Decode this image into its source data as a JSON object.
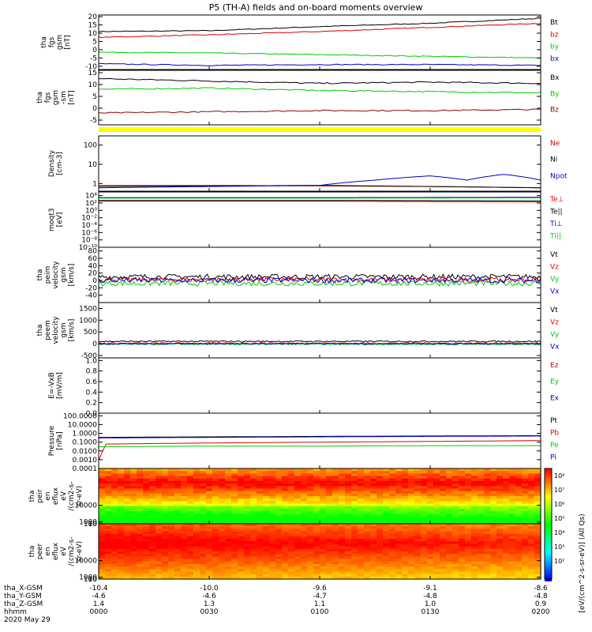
{
  "title": "P5 (TH-A) fields and on-board moments overview",
  "colors": {
    "black": "#000000",
    "red": "#e00000",
    "green": "#00cc00",
    "blue": "#0000cc",
    "darkred": "#990000",
    "yellow": "#ffff00"
  },
  "chart_data": [
    {
      "type": "line",
      "name": "tha_fgs_gsm",
      "ylabel_lines": [
        "tha",
        "fgs",
        "gsm",
        "[nT]"
      ],
      "ylim": [
        -12,
        21
      ],
      "yticks": [
        {
          "v": 20,
          "l": "20"
        },
        {
          "v": 15,
          "l": "15"
        },
        {
          "v": 10,
          "l": "10"
        },
        {
          "v": 5,
          "l": "5"
        },
        {
          "v": 0,
          "l": "0"
        },
        {
          "v": -5,
          "l": "-5"
        },
        {
          "v": -10,
          "l": "-10"
        }
      ],
      "series": [
        {
          "name": "Bt",
          "color": "#000000",
          "x": [
            0,
            30,
            60,
            90,
            120
          ],
          "values": [
            11,
            11.5,
            14,
            16,
            19
          ]
        },
        {
          "name": "bz",
          "color": "#e00000",
          "x": [
            0,
            30,
            60,
            90,
            120
          ],
          "values": [
            7.5,
            9,
            11,
            13.5,
            16
          ]
        },
        {
          "name": "by",
          "color": "#00cc00",
          "x": [
            0,
            30,
            60,
            90,
            120
          ],
          "values": [
            -1.5,
            -2,
            -3,
            -4,
            -5
          ]
        },
        {
          "name": "bx",
          "color": "#0000cc",
          "x": [
            0,
            30,
            60,
            90,
            120
          ],
          "values": [
            -8.5,
            -9.5,
            -9,
            -9,
            -9.5
          ]
        }
      ]
    },
    {
      "type": "line",
      "name": "tha_fgs_gsm_sm",
      "ylabel_lines": [
        "tha",
        "fgs",
        "gsm",
        "-sm",
        "[nT]"
      ],
      "ylim": [
        -7,
        16
      ],
      "yticks": [
        {
          "v": 15,
          "l": "15"
        },
        {
          "v": 10,
          "l": "10"
        },
        {
          "v": 5,
          "l": "5"
        },
        {
          "v": 0,
          "l": "0"
        },
        {
          "v": -5,
          "l": "-5"
        }
      ],
      "series": [
        {
          "name": "Bx",
          "color": "#000000",
          "x": [
            0,
            30,
            60,
            90,
            120
          ],
          "values": [
            12.5,
            11.5,
            10.5,
            11,
            10.5
          ]
        },
        {
          "name": "By",
          "color": "#00cc00",
          "x": [
            0,
            30,
            60,
            90,
            120
          ],
          "values": [
            8,
            8.5,
            7.5,
            7,
            6.5
          ]
        },
        {
          "name": "Bz",
          "color": "#990000",
          "x": [
            0,
            30,
            60,
            90,
            120
          ],
          "values": [
            -2,
            -1.5,
            -1,
            -1,
            -0.5
          ]
        }
      ]
    },
    {
      "type": "line",
      "name": "density",
      "ylog": true,
      "ylabel_lines": [
        "Density",
        "[cm-3]"
      ],
      "ylim": [
        0.4,
        300
      ],
      "yticks": [
        {
          "v": 1,
          "l": "1"
        },
        {
          "v": 10,
          "l": "10"
        },
        {
          "v": 100,
          "l": "100"
        }
      ],
      "series": [
        {
          "name": "Ne",
          "color": "#e00000",
          "x": [
            0,
            30,
            60,
            90,
            120
          ],
          "values": [
            0.8,
            0.8,
            0.75,
            0.7,
            0.6
          ]
        },
        {
          "name": "Ni",
          "color": "#000000",
          "x": [
            0,
            30,
            60,
            90,
            120
          ],
          "values": [
            0.7,
            0.75,
            0.8,
            0.7,
            0.6
          ]
        },
        {
          "name": "Npot",
          "color": "#0000cc",
          "x": [
            0,
            30,
            60,
            75,
            90,
            100,
            110,
            120
          ],
          "values": [
            0.6,
            0.7,
            0.8,
            1.5,
            2.5,
            1.5,
            3,
            1.5
          ]
        }
      ]
    },
    {
      "type": "line",
      "name": "moqt3",
      "ylog": true,
      "ylabel_lines": [
        "moqt3",
        "[eV]"
      ],
      "ylim": [
        1e-10,
        100000.0
      ],
      "yticks": [
        {
          "v": 10000,
          "l": "10⁴"
        },
        {
          "v": 100,
          "l": "10²"
        },
        {
          "v": 1,
          "l": "10⁰"
        },
        {
          "v": 0.01,
          "l": "10⁻²"
        },
        {
          "v": 0.0001,
          "l": "10⁻⁴"
        },
        {
          "v": 1e-06,
          "l": "10⁻⁶"
        },
        {
          "v": 1e-08,
          "l": "10⁻⁸"
        },
        {
          "v": 1e-10,
          "l": "10⁻¹⁰"
        }
      ],
      "series": [
        {
          "name": "Te⊥",
          "color": "#e00000",
          "x": [
            0,
            60,
            120
          ],
          "values": [
            300,
            300,
            200
          ]
        },
        {
          "name": "Te||",
          "color": "#000000",
          "x": [
            0,
            60,
            120
          ],
          "values": [
            500,
            500,
            400
          ]
        },
        {
          "name": "Ti⊥",
          "color": "#0000cc",
          "x": [
            0,
            60,
            120
          ],
          "values": [
            3000,
            3000,
            3500
          ]
        },
        {
          "name": "Ti||",
          "color": "#00cc00",
          "x": [
            0,
            60,
            120
          ],
          "values": [
            2000,
            2000,
            2500
          ]
        }
      ]
    },
    {
      "type": "line",
      "name": "peim_velocity",
      "ylabel_lines": [
        "tha",
        "peim",
        "velocity",
        "gsm",
        "[km/s]"
      ],
      "ylim": [
        -60,
        90
      ],
      "yticks": [
        {
          "v": 80,
          "l": "80"
        },
        {
          "v": 60,
          "l": "60"
        },
        {
          "v": 40,
          "l": "40"
        },
        {
          "v": 20,
          "l": "20"
        },
        {
          "v": 0,
          "l": "0"
        },
        {
          "v": -20,
          "l": "-20"
        },
        {
          "v": -40,
          "l": "-40"
        }
      ],
      "series": [
        {
          "name": "Vt",
          "color": "#000000",
          "x": [
            0,
            120
          ],
          "values": [
            10,
            10
          ]
        },
        {
          "name": "Vz",
          "color": "#e00000",
          "x": [
            0,
            120
          ],
          "values": [
            2,
            2
          ]
        },
        {
          "name": "Vy",
          "color": "#00cc00",
          "x": [
            0,
            120
          ],
          "values": [
            -8,
            -8
          ]
        },
        {
          "name": "Vx",
          "color": "#0000cc",
          "x": [
            0,
            120
          ],
          "values": [
            0,
            0
          ]
        }
      ]
    },
    {
      "type": "line",
      "name": "peem_velocity",
      "ylabel_lines": [
        "tha",
        "peem",
        "velocity",
        "gsm",
        "[km/s]"
      ],
      "ylim": [
        -600,
        1750
      ],
      "yticks": [
        {
          "v": 1500,
          "l": "1500"
        },
        {
          "v": 1000,
          "l": "1000"
        },
        {
          "v": 500,
          "l": "500"
        },
        {
          "v": 0,
          "l": "0"
        },
        {
          "v": -500,
          "l": "-500"
        }
      ],
      "series": [
        {
          "name": "Vt",
          "color": "#000000",
          "x": [
            0,
            120
          ],
          "values": [
            100,
            100
          ]
        },
        {
          "name": "Vz",
          "color": "#e00000",
          "x": [
            0,
            120
          ],
          "values": [
            20,
            20
          ]
        },
        {
          "name": "Vy",
          "color": "#00cc00",
          "x": [
            0,
            120
          ],
          "values": [
            -20,
            -20
          ]
        },
        {
          "name": "Vx",
          "color": "#0000cc",
          "x": [
            0,
            120
          ],
          "values": [
            0,
            0
          ]
        }
      ]
    },
    {
      "type": "line",
      "name": "efield",
      "ylabel_lines": [
        "E=-VxB",
        "[mV/m]"
      ],
      "ylim": [
        0,
        1.05
      ],
      "yticks": [
        {
          "v": 1.0,
          "l": "1.0"
        },
        {
          "v": 0.8,
          "l": "0.8"
        },
        {
          "v": 0.6,
          "l": "0.6"
        },
        {
          "v": 0.4,
          "l": "0.4"
        },
        {
          "v": 0.2,
          "l": "0.2"
        },
        {
          "v": 0.0,
          "l": "0.0"
        }
      ],
      "series": [
        {
          "name": "Ez",
          "color": "#e00000",
          "x": [],
          "values": []
        },
        {
          "name": "Ey",
          "color": "#00cc00",
          "x": [],
          "values": []
        },
        {
          "name": "Ex",
          "color": "#0000cc",
          "x": [],
          "values": []
        }
      ]
    },
    {
      "type": "line",
      "name": "pressure",
      "ylog": true,
      "ylabel_lines": [
        "Pressure",
        "[nPa]"
      ],
      "ylim": [
        0.0001,
        200
      ],
      "yticks": [
        {
          "v": 100,
          "l": "100.0000"
        },
        {
          "v": 10,
          "l": "10.0000"
        },
        {
          "v": 1,
          "l": "1.0000"
        },
        {
          "v": 0.1,
          "l": "0.1000"
        },
        {
          "v": 0.01,
          "l": "0.0100"
        },
        {
          "v": 0.001,
          "l": "0.0010"
        },
        {
          "v": 0.0001,
          "l": "0.0001"
        }
      ],
      "series": [
        {
          "name": "Pt",
          "color": "#000000",
          "x": [
            0,
            30,
            60,
            90,
            120
          ],
          "values": [
            0.35,
            0.4,
            0.45,
            0.5,
            0.55
          ]
        },
        {
          "name": "Pb",
          "color": "#e00000",
          "x": [
            0,
            1,
            2,
            30,
            60,
            90,
            120
          ],
          "values": [
            0.0008,
            0.008,
            0.06,
            0.08,
            0.1,
            0.12,
            0.15
          ]
        },
        {
          "name": "Pe",
          "color": "#00cc00",
          "x": [
            0,
            30,
            60,
            90,
            120
          ],
          "values": [
            0.03,
            0.035,
            0.035,
            0.04,
            0.04
          ]
        },
        {
          "name": "Pi",
          "color": "#0000cc",
          "x": [
            0,
            30,
            60,
            90,
            120
          ],
          "values": [
            0.3,
            0.35,
            0.4,
            0.45,
            0.5
          ]
        }
      ]
    },
    {
      "type": "heatmap",
      "name": "peir_en_eflux",
      "ylabel_lines": [
        "tha",
        "peir",
        "en",
        "eflux",
        "eV",
        "/(cm2-s-",
        "sr-eV)"
      ],
      "ylim": [
        5,
        30000
      ],
      "yticks": [
        {
          "v": 10000,
          "l": "10000"
        },
        {
          "v": 1000,
          "l": "1000"
        },
        {
          "v": 100,
          "l": "100"
        },
        {
          "v": 10,
          "l": "10"
        }
      ]
    },
    {
      "type": "heatmap",
      "name": "peer_en_eflux",
      "ylabel_lines": [
        "tha",
        "peer",
        "en",
        "eflux",
        "eV",
        "/(cm2-s-",
        "sr-eV)"
      ],
      "ylim": [
        5,
        30000
      ],
      "yticks": [
        {
          "v": 10000,
          "l": "10000"
        },
        {
          "v": 1000,
          "l": "1000"
        },
        {
          "v": 100,
          "l": "100"
        },
        {
          "v": 10,
          "l": "10"
        }
      ]
    }
  ],
  "colorbar": {
    "label": "[eV/(cm^2-s-sr-eV)] (All Qs)",
    "tick_labels": [
      "10⁸",
      "10⁷",
      "10⁶",
      "10⁵",
      "10⁴",
      "10³",
      "10²"
    ]
  },
  "xaxis": {
    "row_labels": [
      "tha_X-GSM",
      "tha_Y-GSM",
      "tha_Z-GSM",
      "hhmm",
      "2020 May 29"
    ],
    "ticks": [
      {
        "t": 0,
        "x": "-10.4",
        "y": "-4.6",
        "z": "1.4",
        "hhmm": "0000"
      },
      {
        "t": 30,
        "x": "-10.0",
        "y": "-4.6",
        "z": "1.3",
        "hhmm": "0030"
      },
      {
        "t": 60,
        "x": "-9.6",
        "y": "-4.7",
        "z": "1.1",
        "hhmm": "0100"
      },
      {
        "t": 90,
        "x": "-9.1",
        "y": "-4.8",
        "z": "1.0",
        "hhmm": "0130"
      },
      {
        "t": 120,
        "x": "-8.6",
        "y": "-4.8",
        "z": "0.9",
        "hhmm": "0200"
      }
    ]
  }
}
